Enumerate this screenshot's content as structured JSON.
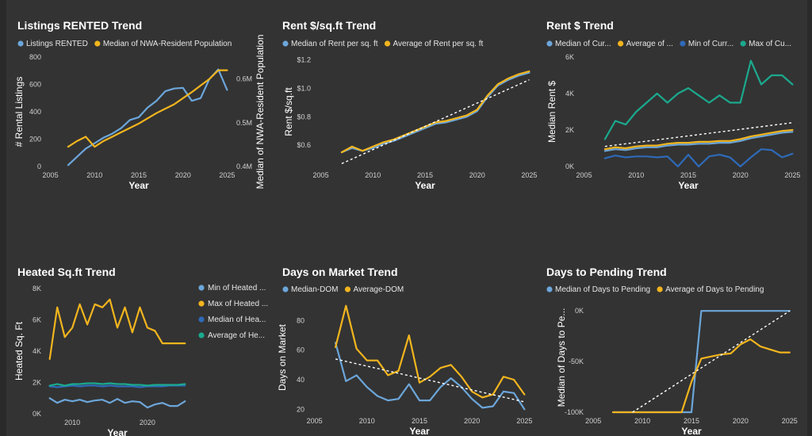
{
  "colors": {
    "blue_light": "#6CA6DA",
    "gold": "#F2B51E",
    "teal": "#1BA98E",
    "blue_dark": "#2E6AB8",
    "trend": "#ffffff"
  },
  "chart_data": [
    {
      "id": "listings",
      "type": "line",
      "title": "Listings RENTED Trend",
      "xlabel": "Year",
      "ylabel": "# Rental Listings",
      "y2label": "Median of NWA-Resident Population",
      "xlim": [
        2004.5,
        2025.5
      ],
      "xticks": [
        2005,
        2010,
        2015,
        2020,
        2025
      ],
      "ylim": [
        0,
        800
      ],
      "yticks": [
        0,
        200,
        400,
        600,
        800
      ],
      "ytick_labels": [
        "0",
        "200",
        "400",
        "600",
        "800"
      ],
      "y2lim": [
        0.4,
        0.65
      ],
      "y2ticks": [
        0.4,
        0.5,
        0.6
      ],
      "y2tick_labels": [
        "0.4M",
        "0.5M",
        "0.6M"
      ],
      "legend_position": "top",
      "series": [
        {
          "name": "Listings RENTED",
          "color": "blue_light",
          "axis": "left",
          "x": [
            2007,
            2008,
            2009,
            2010,
            2011,
            2012,
            2013,
            2014,
            2015,
            2016,
            2017,
            2018,
            2019,
            2020,
            2021,
            2022,
            2023,
            2024,
            2025
          ],
          "values": [
            10,
            70,
            130,
            170,
            210,
            240,
            280,
            340,
            360,
            430,
            480,
            550,
            570,
            575,
            480,
            500,
            640,
            710,
            560
          ]
        },
        {
          "name": "Median of NWA-Resident Population",
          "color": "gold",
          "axis": "right",
          "x": [
            2007,
            2008,
            2009,
            2010,
            2011,
            2012,
            2013,
            2014,
            2015,
            2016,
            2017,
            2018,
            2019,
            2020,
            2021,
            2022,
            2023,
            2024,
            2025
          ],
          "values": [
            0.445,
            0.458,
            0.468,
            0.445,
            0.458,
            0.468,
            0.478,
            0.488,
            0.498,
            0.51,
            0.522,
            0.532,
            0.542,
            0.556,
            0.57,
            0.585,
            0.6,
            0.62,
            0.62
          ]
        }
      ]
    },
    {
      "id": "rentsqft",
      "type": "line",
      "title": "Rent $/sq.ft Trend",
      "xlabel": "Year",
      "ylabel": "Rent $/sq.ft",
      "xlim": [
        2004.5,
        2025.5
      ],
      "xticks": [
        2005,
        2010,
        2015,
        2020,
        2025
      ],
      "ylim": [
        0.45,
        1.22
      ],
      "yticks": [
        0.6,
        0.8,
        1.0,
        1.2
      ],
      "ytick_labels": [
        "$0.6",
        "$0.8",
        "$1.0",
        "$1.2"
      ],
      "trendline": [
        [
          2007,
          0.47
        ],
        [
          2025,
          1.06
        ]
      ],
      "legend_position": "top",
      "series": [
        {
          "name": "Median of Rent per sq. ft",
          "color": "blue_light",
          "x": [
            2007,
            2008,
            2009,
            2010,
            2011,
            2012,
            2013,
            2014,
            2015,
            2016,
            2017,
            2018,
            2019,
            2020,
            2021,
            2022,
            2023,
            2024,
            2025
          ],
          "values": [
            0.55,
            0.58,
            0.56,
            0.58,
            0.61,
            0.63,
            0.66,
            0.69,
            0.72,
            0.75,
            0.76,
            0.78,
            0.8,
            0.84,
            0.94,
            1.02,
            1.06,
            1.09,
            1.11
          ]
        },
        {
          "name": "Average of Rent per sq. ft",
          "color": "gold",
          "x": [
            2007,
            2008,
            2009,
            2010,
            2011,
            2012,
            2013,
            2014,
            2015,
            2016,
            2017,
            2018,
            2019,
            2020,
            2021,
            2022,
            2023,
            2024,
            2025
          ],
          "values": [
            0.55,
            0.59,
            0.56,
            0.59,
            0.62,
            0.64,
            0.67,
            0.7,
            0.73,
            0.76,
            0.77,
            0.79,
            0.81,
            0.85,
            0.95,
            1.03,
            1.07,
            1.1,
            1.12
          ]
        }
      ]
    },
    {
      "id": "rent",
      "type": "line",
      "title": "Rent $ Trend",
      "xlabel": "Year",
      "ylabel": "Median Rent $",
      "xlim": [
        2004.5,
        2025.5
      ],
      "xticks": [
        2005,
        2010,
        2015,
        2020,
        2025
      ],
      "ylim": [
        0,
        6000
      ],
      "yticks": [
        0,
        2000,
        4000,
        6000
      ],
      "ytick_labels": [
        "0K",
        "2K",
        "4K",
        "6K"
      ],
      "trendline": [
        [
          2007,
          1100
        ],
        [
          2025,
          2400
        ]
      ],
      "legend_position": "top",
      "series": [
        {
          "name": "Median of Cur...",
          "color": "blue_light",
          "x": [
            2007,
            2008,
            2009,
            2010,
            2011,
            2012,
            2013,
            2014,
            2015,
            2016,
            2017,
            2018,
            2019,
            2020,
            2021,
            2022,
            2023,
            2024,
            2025
          ],
          "values": [
            850,
            950,
            900,
            1000,
            1050,
            1050,
            1150,
            1200,
            1200,
            1250,
            1250,
            1300,
            1300,
            1400,
            1550,
            1650,
            1750,
            1850,
            1900
          ]
        },
        {
          "name": "Average of ...",
          "color": "gold",
          "x": [
            2007,
            2008,
            2009,
            2010,
            2011,
            2012,
            2013,
            2014,
            2015,
            2016,
            2017,
            2018,
            2019,
            2020,
            2021,
            2022,
            2023,
            2024,
            2025
          ],
          "values": [
            950,
            1050,
            1000,
            1100,
            1150,
            1150,
            1250,
            1300,
            1300,
            1350,
            1350,
            1400,
            1400,
            1500,
            1650,
            1750,
            1850,
            1950,
            2000
          ]
        },
        {
          "name": "Min of Curr...",
          "color": "blue_dark",
          "x": [
            2007,
            2008,
            2009,
            2010,
            2011,
            2012,
            2013,
            2014,
            2015,
            2016,
            2017,
            2018,
            2019,
            2020,
            2021,
            2022,
            2023,
            2024,
            2025
          ],
          "values": [
            450,
            600,
            500,
            550,
            550,
            500,
            550,
            0,
            650,
            0,
            550,
            650,
            500,
            0,
            500,
            950,
            900,
            500,
            700
          ]
        },
        {
          "name": "Max of Cu...",
          "color": "teal",
          "x": [
            2007,
            2008,
            2009,
            2010,
            2011,
            2012,
            2013,
            2014,
            2015,
            2016,
            2017,
            2018,
            2019,
            2020,
            2021,
            2022,
            2023,
            2024,
            2025
          ],
          "values": [
            1500,
            2500,
            2300,
            3000,
            3500,
            4000,
            3500,
            4000,
            4300,
            3900,
            3500,
            3900,
            3500,
            3500,
            5800,
            4500,
            5000,
            5000,
            4500
          ]
        }
      ]
    },
    {
      "id": "heated",
      "type": "line",
      "title": "Heated Sq.ft Trend",
      "xlabel": "Year",
      "ylabel": "Heated Sq. Ft",
      "xlim": [
        2006.5,
        2025.5
      ],
      "xticks": [
        2010,
        2020
      ],
      "ylim": [
        0,
        8000
      ],
      "yticks": [
        0,
        2000,
        4000,
        6000,
        8000
      ],
      "ytick_labels": [
        "0K",
        "2K",
        "4K",
        "6K",
        "8K"
      ],
      "legend_position": "right",
      "series": [
        {
          "name": "Min of Heated ...",
          "color": "blue_light",
          "x": [
            2007,
            2008,
            2009,
            2010,
            2011,
            2012,
            2013,
            2014,
            2015,
            2016,
            2017,
            2018,
            2019,
            2020,
            2021,
            2022,
            2023,
            2024,
            2025
          ],
          "values": [
            1000,
            700,
            900,
            800,
            900,
            750,
            850,
            900,
            700,
            950,
            700,
            800,
            750,
            400,
            600,
            700,
            500,
            500,
            800
          ]
        },
        {
          "name": "Max of Heated ...",
          "color": "gold",
          "x": [
            2007,
            2008,
            2009,
            2010,
            2011,
            2012,
            2013,
            2014,
            2015,
            2016,
            2017,
            2018,
            2019,
            2020,
            2021,
            2022,
            2023,
            2024,
            2025
          ],
          "values": [
            3500,
            6800,
            4900,
            5500,
            7000,
            5700,
            7000,
            6800,
            7300,
            5500,
            6800,
            5200,
            6800,
            5500,
            5300,
            4500,
            4500,
            4500,
            4500
          ]
        },
        {
          "name": "Median of Hea...",
          "color": "blue_dark",
          "x": [
            2007,
            2008,
            2009,
            2010,
            2011,
            2012,
            2013,
            2014,
            2015,
            2016,
            2017,
            2018,
            2019,
            2020,
            2021,
            2022,
            2023,
            2024,
            2025
          ],
          "values": [
            1750,
            1700,
            1750,
            1800,
            1750,
            1800,
            1800,
            1750,
            1800,
            1750,
            1750,
            1750,
            1700,
            1750,
            1750,
            1750,
            1800,
            1800,
            1800
          ]
        },
        {
          "name": "Average of He...",
          "color": "teal",
          "x": [
            2007,
            2008,
            2009,
            2010,
            2011,
            2012,
            2013,
            2014,
            2015,
            2016,
            2017,
            2018,
            2019,
            2020,
            2021,
            2022,
            2023,
            2024,
            2025
          ],
          "values": [
            1800,
            1900,
            1800,
            1900,
            1900,
            1950,
            1950,
            1900,
            1950,
            1900,
            1900,
            1850,
            1850,
            1800,
            1850,
            1850,
            1850,
            1850,
            1900
          ]
        }
      ]
    },
    {
      "id": "dom",
      "type": "line",
      "title": "Days on Market Trend",
      "xlabel": "Year",
      "ylabel": "Days on Market",
      "xlim": [
        2004.5,
        2025.5
      ],
      "xticks": [
        2005,
        2010,
        2015,
        2020,
        2025
      ],
      "ylim": [
        18,
        92
      ],
      "yticks": [
        20,
        40,
        60,
        80
      ],
      "ytick_labels": [
        "20",
        "40",
        "60",
        "80"
      ],
      "trendline": [
        [
          2007,
          54
        ],
        [
          2025,
          25
        ]
      ],
      "legend_position": "top",
      "series": [
        {
          "name": "Median-DOM",
          "color": "blue_light",
          "x": [
            2007,
            2008,
            2009,
            2010,
            2011,
            2012,
            2013,
            2014,
            2015,
            2016,
            2017,
            2018,
            2019,
            2020,
            2021,
            2022,
            2023,
            2024,
            2025
          ],
          "values": [
            65,
            39,
            43,
            35,
            29,
            26,
            27,
            37,
            26,
            26,
            35,
            41,
            35,
            27,
            21,
            22,
            32,
            31,
            20
          ]
        },
        {
          "name": "Average-DOM",
          "color": "gold",
          "x": [
            2007,
            2008,
            2009,
            2010,
            2011,
            2012,
            2013,
            2014,
            2015,
            2016,
            2017,
            2018,
            2019,
            2020,
            2021,
            2022,
            2023,
            2024,
            2025
          ],
          "values": [
            62,
            90,
            61,
            53,
            53,
            43,
            46,
            70,
            38,
            42,
            48,
            50,
            42,
            32,
            28,
            30,
            42,
            40,
            30
          ]
        }
      ]
    },
    {
      "id": "pending",
      "type": "line",
      "title": "Days to Pending Trend",
      "xlabel": "Year",
      "ylabel": "Median of Days to Pe...",
      "xlim": [
        2004.5,
        2025.5
      ],
      "xticks": [
        2005,
        2010,
        2015,
        2020,
        2025
      ],
      "ylim": [
        -100000,
        8000
      ],
      "yticks": [
        -100000,
        -50000,
        0
      ],
      "ytick_labels": [
        "-100K",
        "-50K",
        "0K"
      ],
      "trendline": [
        [
          2009,
          -100000
        ],
        [
          2025,
          0
        ]
      ],
      "legend_position": "top",
      "series": [
        {
          "name": "Median of Days to Pending",
          "color": "blue_light",
          "x": [
            2007,
            2008,
            2009,
            2010,
            2011,
            2012,
            2013,
            2014,
            2015,
            2016,
            2017,
            2018,
            2019,
            2020,
            2021,
            2022,
            2023,
            2024,
            2025
          ],
          "values": [
            -100000,
            -100000,
            -100000,
            -100000,
            -100000,
            -100000,
            -100000,
            -100000,
            -100000,
            0,
            0,
            0,
            0,
            0,
            0,
            0,
            0,
            0,
            0
          ]
        },
        {
          "name": "Average of Days to Pending",
          "color": "gold",
          "x": [
            2007,
            2008,
            2009,
            2010,
            2011,
            2012,
            2013,
            2014,
            2015,
            2016,
            2017,
            2018,
            2019,
            2020,
            2021,
            2022,
            2023,
            2024,
            2025
          ],
          "values": [
            -100000,
            -100000,
            -100000,
            -100000,
            -100000,
            -100000,
            -100000,
            -100000,
            -70000,
            -47000,
            -45000,
            -43000,
            -42000,
            -33000,
            -28000,
            -35000,
            -38000,
            -41000,
            -41000
          ]
        }
      ]
    }
  ]
}
